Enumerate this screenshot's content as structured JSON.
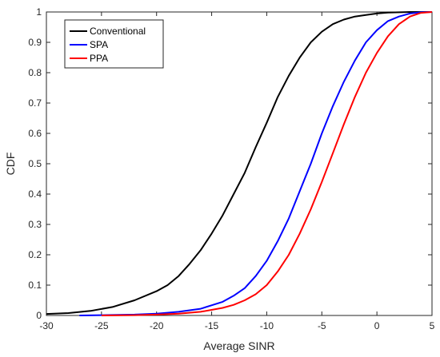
{
  "chart_data": {
    "type": "line",
    "title": "",
    "xlabel": "Average SINR",
    "ylabel": "CDF",
    "xlim": [
      -30,
      5
    ],
    "ylim": [
      0,
      1
    ],
    "xticks": [
      "-30",
      "-25",
      "-20",
      "-15",
      "-10",
      "-5",
      "0",
      "5"
    ],
    "yticks": [
      "0",
      "0.1",
      "0.2",
      "0.3",
      "0.4",
      "0.5",
      "0.6",
      "0.7",
      "0.8",
      "0.9",
      "1"
    ],
    "grid": false,
    "legend_position": "top-left",
    "series": [
      {
        "name": "Conventional",
        "color": "#000000",
        "x": [
          -30,
          -28,
          -26,
          -24,
          -22,
          -20,
          -19,
          -18,
          -17,
          -16,
          -15,
          -14,
          -13,
          -12,
          -11,
          -10,
          -9,
          -8,
          -7,
          -6,
          -5,
          -4,
          -3,
          -2,
          -1,
          0,
          1,
          2,
          3,
          4,
          5
        ],
        "y": [
          0.005,
          0.008,
          0.015,
          0.028,
          0.05,
          0.08,
          0.1,
          0.13,
          0.17,
          0.215,
          0.27,
          0.33,
          0.4,
          0.47,
          0.555,
          0.635,
          0.72,
          0.79,
          0.85,
          0.9,
          0.935,
          0.96,
          0.975,
          0.985,
          0.99,
          0.995,
          0.998,
          0.999,
          1.0,
          1.0,
          1.0
        ]
      },
      {
        "name": "SPA",
        "color": "#0000ff",
        "x": [
          -27,
          -25,
          -22,
          -20,
          -18,
          -16,
          -14,
          -13,
          -12,
          -11,
          -10,
          -9,
          -8,
          -7,
          -6,
          -5,
          -4,
          -3,
          -2,
          -1,
          0,
          1,
          2,
          3,
          4,
          5
        ],
        "y": [
          0.0,
          0.001,
          0.003,
          0.006,
          0.012,
          0.022,
          0.045,
          0.065,
          0.09,
          0.13,
          0.18,
          0.245,
          0.32,
          0.41,
          0.5,
          0.6,
          0.69,
          0.77,
          0.84,
          0.9,
          0.94,
          0.97,
          0.985,
          0.995,
          0.999,
          1.0
        ]
      },
      {
        "name": "PPA",
        "color": "#ff0000",
        "x": [
          -25,
          -22,
          -20,
          -18,
          -16,
          -14,
          -13,
          -12,
          -11,
          -10,
          -9,
          -8,
          -7,
          -6,
          -5,
          -4,
          -3,
          -2,
          -1,
          0,
          1,
          2,
          3,
          4,
          5
        ],
        "y": [
          0.0,
          0.001,
          0.003,
          0.006,
          0.012,
          0.025,
          0.035,
          0.05,
          0.07,
          0.1,
          0.145,
          0.2,
          0.27,
          0.35,
          0.44,
          0.535,
          0.63,
          0.72,
          0.8,
          0.865,
          0.92,
          0.96,
          0.985,
          0.997,
          1.0
        ]
      }
    ]
  }
}
